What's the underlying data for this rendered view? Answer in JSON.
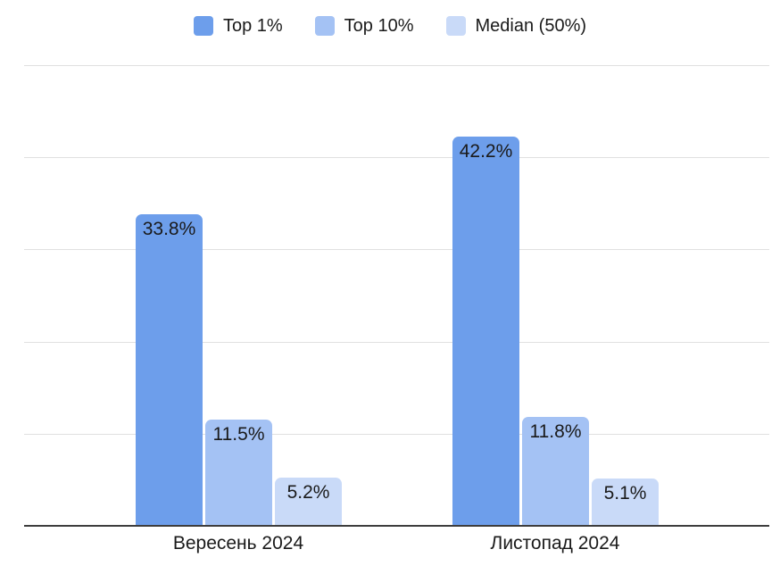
{
  "chart_data": {
    "type": "bar",
    "title": "",
    "categories": [
      "Вересень 2024",
      "Листопад 2024"
    ],
    "series": [
      {
        "name": "Top 1%",
        "color": "#6d9eeb",
        "values": [
          33.8,
          42.2
        ],
        "data_labels": [
          "33.8%",
          "42.2%"
        ]
      },
      {
        "name": "Top 10%",
        "color": "#a4c2f4",
        "values": [
          11.5,
          11.8
        ],
        "data_labels": [
          "11.5%",
          "11.8%"
        ]
      },
      {
        "name": "Median (50%)",
        "color": "#c9daf8",
        "values": [
          5.2,
          5.1
        ],
        "data_labels": [
          "5.2%",
          "5.1%"
        ]
      }
    ],
    "ylim": [
      0,
      50
    ],
    "gridline_interval": 10,
    "grid": true,
    "legend_position": "top",
    "colors": {
      "gridline": "#e0e0e0",
      "axis_line": "#3d3d3d",
      "label_text": "#1a1a1a",
      "background": "#ffffff"
    }
  }
}
